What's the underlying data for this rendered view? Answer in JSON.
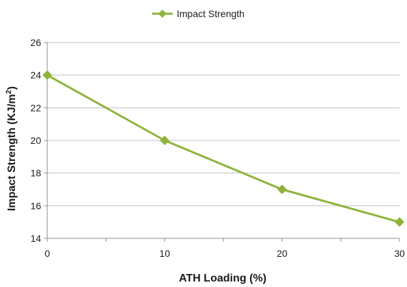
{
  "chart_data": {
    "type": "line",
    "title": "",
    "xlabel": "ATH Loading (%)",
    "ylabel": "Impact Strength (KJ/m²)",
    "ylabel_main": "Impact Strength (KJ/m",
    "ylabel_sup": "2",
    "ylabel_end": ")",
    "x": [
      0,
      10,
      20,
      30
    ],
    "series": [
      {
        "name": "Impact Strength",
        "values": [
          24,
          20,
          17,
          15
        ],
        "color": "#8db33a",
        "marker": "diamond"
      }
    ],
    "xlim": [
      0,
      30
    ],
    "ylim": [
      14,
      26
    ],
    "xticks": [
      0,
      10,
      20,
      30
    ],
    "xticks_minor": [
      5,
      15,
      25
    ],
    "yticks": [
      14,
      16,
      18,
      20,
      22,
      24,
      26
    ],
    "grid": true,
    "grid_color": "#bfbfbf",
    "legend_position": "top-center"
  }
}
